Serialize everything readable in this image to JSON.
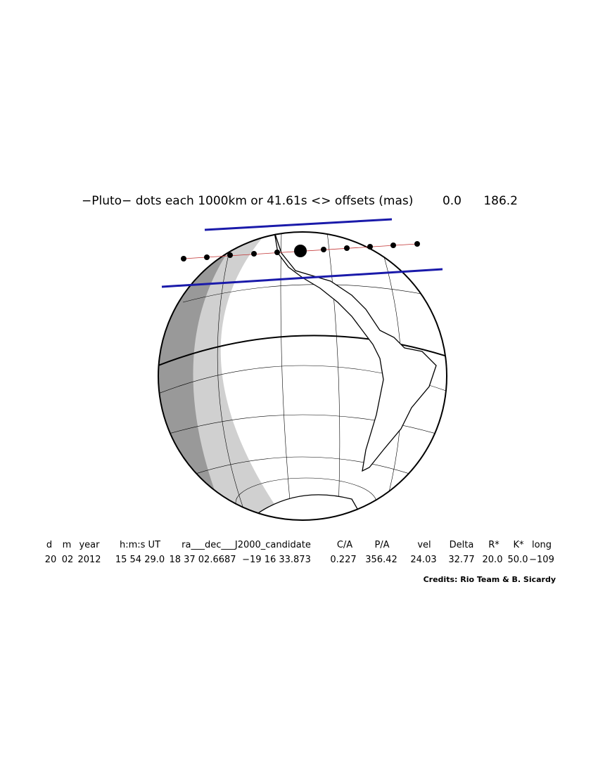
{
  "header": {
    "title": "−Pluto− dots each 1000km or 41.61s <> offsets (mas)",
    "offsets": [
      "0.0",
      "186.2"
    ]
  },
  "table": {
    "columns": [
      "d",
      "m",
      "year",
      "h:m:s UT",
      "ra___dec___J2000_candidate",
      "C/A",
      "P/A",
      "vel",
      "Delta",
      "R*",
      "K*",
      "long"
    ],
    "values": [
      "20",
      "02",
      "2012",
      "15 54 29.0",
      "18 37 02.6687",
      "−19 16 33.873",
      "0.227",
      "356.42",
      "24.03",
      "32.77",
      "20.0",
      "50.0",
      "−109"
    ]
  },
  "credits": "Credits: Rio Team & B. Sicardy"
}
